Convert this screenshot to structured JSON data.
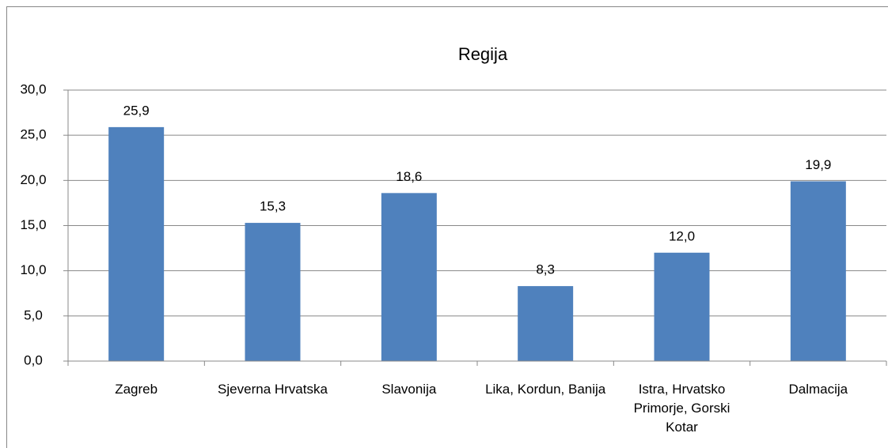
{
  "chart_data": {
    "type": "bar",
    "title": "Regija",
    "categories": [
      "Zagreb",
      "Sjeverna Hrvatska",
      "Slavonija",
      "Lika, Kordun, Banija",
      "Istra, Hrvatsko Primorje, Gorski Kotar",
      "Dalmacija"
    ],
    "values": [
      25.9,
      15.3,
      18.6,
      8.3,
      12.0,
      19.9
    ],
    "value_labels": [
      "25,9",
      "15,3",
      "18,6",
      "8,3",
      "12,0",
      "19,9"
    ],
    "color": "#4f81bd",
    "ylim": [
      0,
      30
    ],
    "yticks": [
      {
        "value": 0,
        "label": "0,0"
      },
      {
        "value": 5,
        "label": "5,0"
      },
      {
        "value": 10,
        "label": "10,0"
      },
      {
        "value": 15,
        "label": "15,0"
      },
      {
        "value": 20,
        "label": "20,0"
      },
      {
        "value": 25,
        "label": "25,0"
      },
      {
        "value": 30,
        "label": "30,0"
      }
    ],
    "grid": true
  }
}
